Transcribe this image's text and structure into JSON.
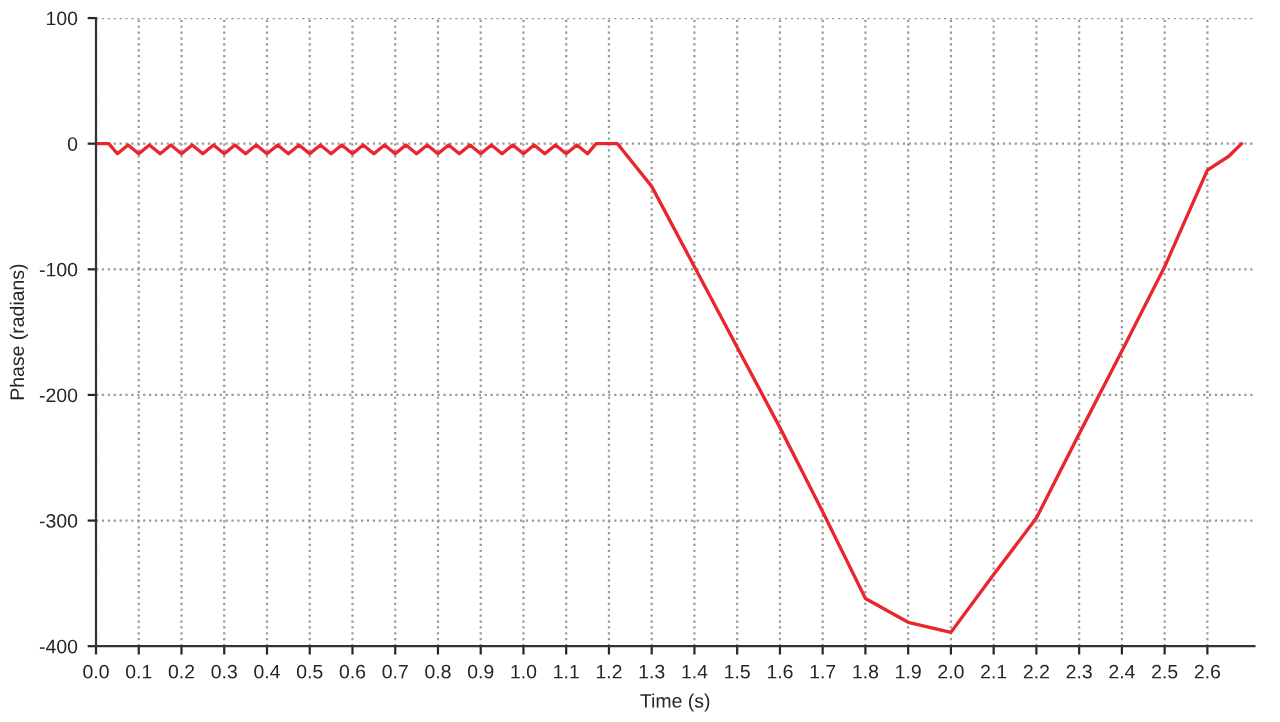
{
  "chart_data": {
    "type": "line",
    "xlabel": "Time (s)",
    "ylabel": "Phase (radians)",
    "series": [
      {
        "color": "#e8262b",
        "x": [
          0,
          0.03,
          0.05,
          0.075,
          0.1,
          0.125,
          0.15,
          0.175,
          0.2,
          0.225,
          0.25,
          0.275,
          0.3,
          0.325,
          0.35,
          0.375,
          0.4,
          0.425,
          0.45,
          0.475,
          0.5,
          0.525,
          0.55,
          0.575,
          0.6,
          0.625,
          0.65,
          0.675,
          0.7,
          0.725,
          0.75,
          0.775,
          0.8,
          0.825,
          0.85,
          0.875,
          0.9,
          0.925,
          0.95,
          0.975,
          1.0,
          1.025,
          1.05,
          1.075,
          1.1,
          1.125,
          1.15,
          1.17,
          1.2,
          1.22,
          1.3,
          1.4,
          1.5,
          1.6,
          1.7,
          1.8,
          1.9,
          2.0,
          2.1,
          2.2,
          2.3,
          2.4,
          2.5,
          2.6,
          2.65,
          2.68
        ],
        "values": [
          0,
          0,
          -8,
          -1,
          -8,
          -1,
          -8,
          -1,
          -8,
          -1,
          -8,
          -1,
          -8,
          -1,
          -8,
          -1,
          -8,
          -1,
          -8,
          -1,
          -8,
          -1,
          -8,
          -1,
          -8,
          -1,
          -8,
          -1,
          -8,
          -1,
          -8,
          -1,
          -8,
          -1,
          -8,
          -1,
          -8,
          -1,
          -8,
          -1,
          -8,
          -1,
          -8,
          -1,
          -8,
          -1,
          -8,
          0,
          0,
          0,
          -34,
          -98,
          -162,
          -226,
          -293,
          -362,
          -381,
          -389,
          -343,
          -298,
          -231,
          -165,
          -98,
          -21,
          -10,
          0
        ]
      }
    ],
    "xlim": [
      0,
      2.71
    ],
    "ylim": [
      -400,
      100
    ],
    "xticks": [
      {
        "value": 0,
        "label": "0.0"
      },
      {
        "value": 0.1,
        "label": "0.1"
      },
      {
        "value": 0.2,
        "label": "0.2"
      },
      {
        "value": 0.3,
        "label": "0.3"
      },
      {
        "value": 0.4,
        "label": "0.4"
      },
      {
        "value": 0.5,
        "label": "0.5"
      },
      {
        "value": 0.6,
        "label": "0.6"
      },
      {
        "value": 0.7,
        "label": "0.7"
      },
      {
        "value": 0.8,
        "label": "0.8"
      },
      {
        "value": 0.9,
        "label": "0.9"
      },
      {
        "value": 1,
        "label": "1.0"
      },
      {
        "value": 1.1,
        "label": "1.1"
      },
      {
        "value": 1.2,
        "label": "1.2"
      },
      {
        "value": 1.3,
        "label": "1.3"
      },
      {
        "value": 1.4,
        "label": "1.4"
      },
      {
        "value": 1.5,
        "label": "1.5"
      },
      {
        "value": 1.6,
        "label": "1.6"
      },
      {
        "value": 1.7,
        "label": "1.7"
      },
      {
        "value": 1.8,
        "label": "1.8"
      },
      {
        "value": 1.9,
        "label": "1.9"
      },
      {
        "value": 2,
        "label": "2.0"
      },
      {
        "value": 2.1,
        "label": "2.1"
      },
      {
        "value": 2.2,
        "label": "2.2"
      },
      {
        "value": 2.3,
        "label": "2.3"
      },
      {
        "value": 2.4,
        "label": "2.4"
      },
      {
        "value": 2.5,
        "label": "2.5"
      },
      {
        "value": 2.6,
        "label": "2.6"
      }
    ],
    "yticks": [
      -400,
      -300,
      -200,
      -100,
      0,
      100
    ],
    "grid": true,
    "marker": "none",
    "line_style": "solid"
  }
}
